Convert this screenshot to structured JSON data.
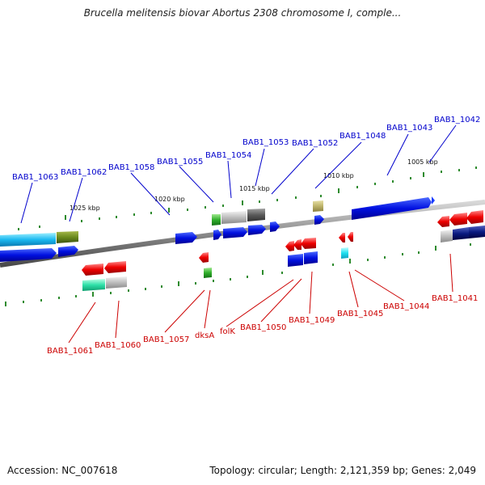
{
  "title": "Brucella melitensis biovar Abortus 2308 chromosome I, comple...",
  "footer": {
    "accession": "Accession: NC_007618",
    "topology": "Topology: circular; Length: 2,121,359 bp; Genes: 2,049"
  },
  "scale_labels": [
    "1025 kbp",
    "1020 kbp",
    "1015 kbp",
    "1010 kbp",
    "1005 kbp"
  ],
  "top_genes": [
    "BAB1_1063",
    "BAB1_1062",
    "BAB1_1058",
    "BAB1_1055",
    "BAB1_1054",
    "BAB1_1053",
    "BAB1_1052",
    "BAB1_1048",
    "BAB1_1043",
    "BAB1_1042"
  ],
  "bottom_genes": [
    "BAB1_1061",
    "BAB1_1060",
    "BAB1_1057",
    "dksA",
    "folK",
    "BAB1_1050",
    "BAB1_1049",
    "BAB1_1045",
    "BAB1_1044",
    "BAB1_1041"
  ],
  "colors": {
    "forward_label": "#0000cc",
    "reverse_label": "#cc0000",
    "backbone": "#8a8a8a"
  }
}
